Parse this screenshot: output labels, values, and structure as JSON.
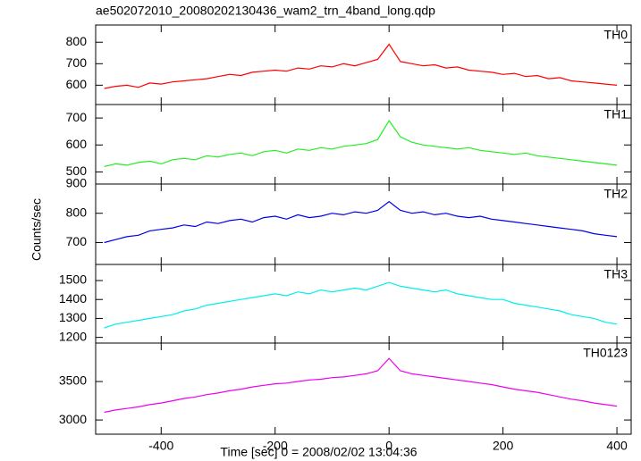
{
  "chart_data": [
    {
      "type": "line",
      "title": "ae502072010_20080202130436_wam2_trn_4band_long.qdp",
      "x": [
        -500,
        -480,
        -460,
        -440,
        -420,
        -400,
        -380,
        -360,
        -340,
        -320,
        -300,
        -280,
        -260,
        -240,
        -220,
        -200,
        -180,
        -160,
        -140,
        -120,
        -100,
        -80,
        -60,
        -40,
        -20,
        0,
        20,
        40,
        60,
        80,
        100,
        120,
        140,
        160,
        180,
        200,
        220,
        240,
        260,
        280,
        300,
        320,
        340,
        360,
        380,
        400
      ],
      "series": [
        {
          "name": "TH0",
          "color": "#ff0000",
          "values": [
            585,
            595,
            600,
            590,
            610,
            605,
            615,
            620,
            625,
            630,
            640,
            650,
            645,
            660,
            665,
            670,
            665,
            680,
            675,
            690,
            685,
            700,
            690,
            705,
            720,
            790,
            710,
            700,
            690,
            695,
            680,
            685,
            670,
            665,
            660,
            650,
            655,
            640,
            645,
            630,
            635,
            620,
            615,
            610,
            605,
            600
          ]
        }
      ],
      "ylim": [
        510,
        880
      ],
      "yticks": [
        600,
        700,
        800
      ]
    },
    {
      "type": "line",
      "x": [
        -500,
        -480,
        -460,
        -440,
        -420,
        -400,
        -380,
        -360,
        -340,
        -320,
        -300,
        -280,
        -260,
        -240,
        -220,
        -200,
        -180,
        -160,
        -140,
        -120,
        -100,
        -80,
        -60,
        -40,
        -20,
        0,
        20,
        40,
        60,
        80,
        100,
        120,
        140,
        160,
        180,
        200,
        220,
        240,
        260,
        280,
        300,
        320,
        340,
        360,
        380,
        400
      ],
      "series": [
        {
          "name": "TH1",
          "color": "#22ee22",
          "values": [
            520,
            530,
            525,
            535,
            540,
            530,
            545,
            550,
            545,
            560,
            555,
            565,
            570,
            560,
            575,
            580,
            570,
            585,
            580,
            590,
            585,
            595,
            600,
            605,
            620,
            690,
            630,
            610,
            600,
            595,
            590,
            585,
            590,
            580,
            575,
            570,
            565,
            570,
            560,
            555,
            550,
            545,
            540,
            535,
            530,
            525
          ]
        }
      ],
      "ylim": [
        455,
        750
      ],
      "yticks": [
        500,
        600,
        700
      ]
    },
    {
      "type": "line",
      "ylabel": "Counts/sec",
      "x": [
        -500,
        -480,
        -460,
        -440,
        -420,
        -400,
        -380,
        -360,
        -340,
        -320,
        -300,
        -280,
        -260,
        -240,
        -220,
        -200,
        -180,
        -160,
        -140,
        -120,
        -100,
        -80,
        -60,
        -40,
        -20,
        0,
        20,
        40,
        60,
        80,
        100,
        120,
        140,
        160,
        180,
        200,
        220,
        240,
        260,
        280,
        300,
        320,
        340,
        360,
        380,
        400
      ],
      "series": [
        {
          "name": "TH2",
          "color": "#0000ee",
          "values": [
            700,
            710,
            720,
            725,
            740,
            745,
            750,
            760,
            755,
            770,
            765,
            775,
            780,
            770,
            785,
            790,
            780,
            795,
            785,
            790,
            800,
            795,
            805,
            800,
            810,
            840,
            810,
            800,
            805,
            795,
            800,
            790,
            785,
            790,
            780,
            775,
            770,
            765,
            760,
            755,
            750,
            745,
            740,
            730,
            725,
            720
          ]
        }
      ],
      "ylim": [
        625,
        900
      ],
      "yticks": [
        700,
        800,
        900
      ]
    },
    {
      "type": "line",
      "x": [
        -500,
        -480,
        -460,
        -440,
        -420,
        -400,
        -380,
        -360,
        -340,
        -320,
        -300,
        -280,
        -260,
        -240,
        -220,
        -200,
        -180,
        -160,
        -140,
        -120,
        -100,
        -80,
        -60,
        -40,
        -20,
        0,
        20,
        40,
        60,
        80,
        100,
        120,
        140,
        160,
        180,
        200,
        220,
        240,
        260,
        280,
        300,
        320,
        340,
        360,
        380,
        400
      ],
      "series": [
        {
          "name": "TH3",
          "color": "#00eeee",
          "values": [
            1250,
            1270,
            1280,
            1290,
            1300,
            1310,
            1320,
            1340,
            1350,
            1370,
            1380,
            1390,
            1400,
            1410,
            1420,
            1430,
            1420,
            1440,
            1430,
            1450,
            1440,
            1450,
            1460,
            1450,
            1470,
            1490,
            1470,
            1460,
            1450,
            1440,
            1450,
            1430,
            1420,
            1410,
            1400,
            1400,
            1380,
            1370,
            1360,
            1350,
            1340,
            1320,
            1310,
            1300,
            1280,
            1270
          ]
        }
      ],
      "ylim": [
        1170,
        1585
      ],
      "yticks": [
        1200,
        1300,
        1400,
        1500
      ]
    },
    {
      "type": "line",
      "xlabel": "Time [sec] 0 = 2008/02/02 13:04:36",
      "x": [
        -500,
        -480,
        -460,
        -440,
        -420,
        -400,
        -380,
        -360,
        -340,
        -320,
        -300,
        -280,
        -260,
        -240,
        -220,
        -200,
        -180,
        -160,
        -140,
        -120,
        -100,
        -80,
        -60,
        -40,
        -20,
        0,
        20,
        40,
        60,
        80,
        100,
        120,
        140,
        160,
        180,
        200,
        220,
        240,
        260,
        280,
        300,
        320,
        340,
        360,
        380,
        400
      ],
      "series": [
        {
          "name": "TH0123",
          "color": "#ee00ee",
          "values": [
            3100,
            3130,
            3150,
            3170,
            3200,
            3220,
            3250,
            3280,
            3300,
            3330,
            3350,
            3380,
            3400,
            3430,
            3450,
            3470,
            3480,
            3500,
            3520,
            3530,
            3550,
            3560,
            3580,
            3600,
            3640,
            3800,
            3640,
            3600,
            3580,
            3560,
            3540,
            3520,
            3500,
            3480,
            3460,
            3430,
            3400,
            3380,
            3360,
            3330,
            3300,
            3270,
            3250,
            3220,
            3200,
            3180
          ]
        }
      ],
      "ylim": [
        2815,
        4000
      ],
      "yticks": [
        3000,
        3500
      ],
      "xlim": [
        -515,
        425
      ],
      "xticks": [
        -400,
        -200,
        0,
        200,
        400
      ]
    }
  ]
}
